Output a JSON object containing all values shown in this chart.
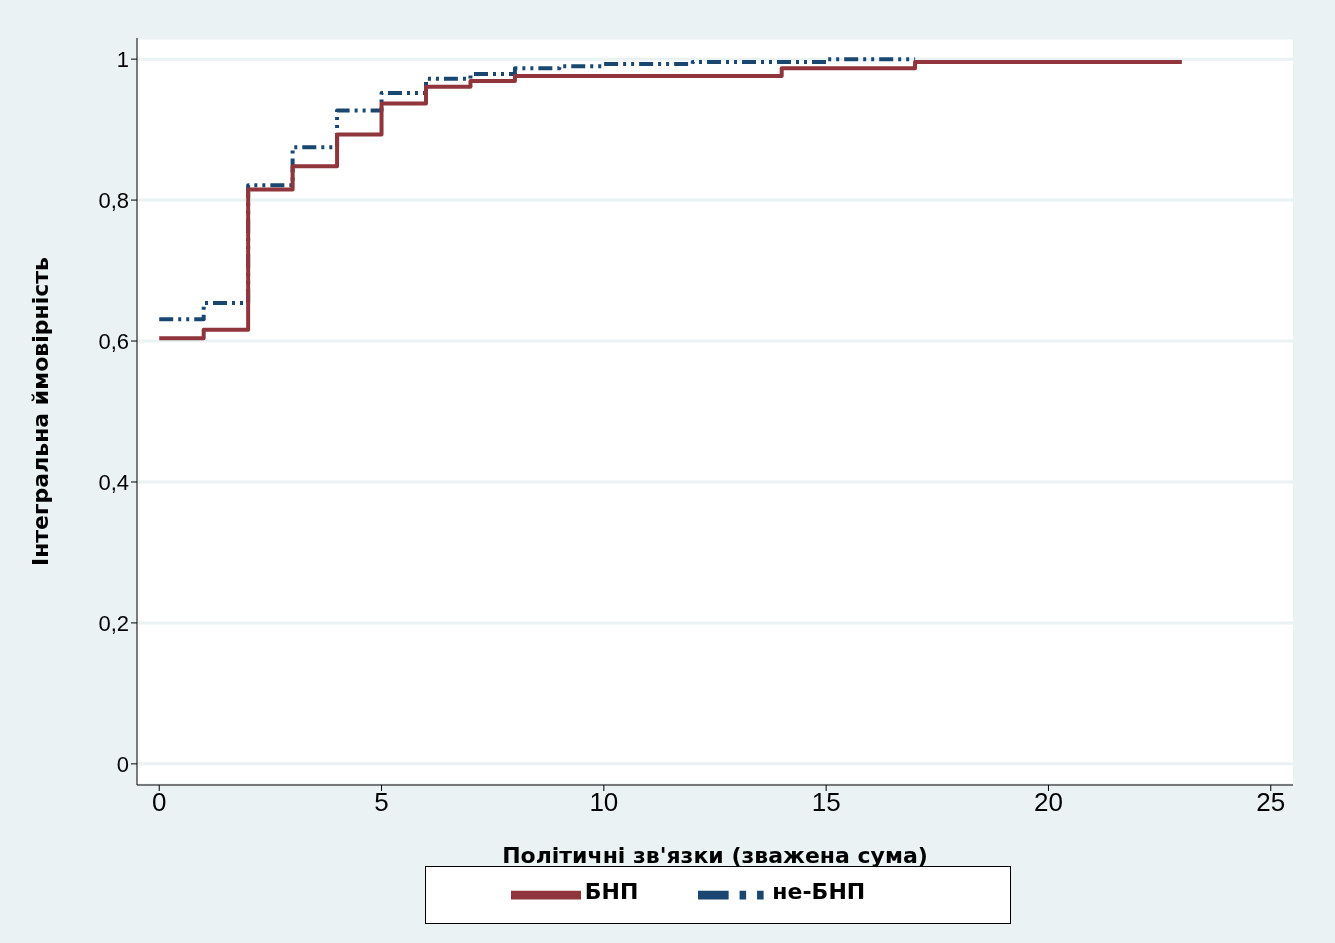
{
  "chart_data": {
    "type": "step",
    "xlabel": "Політичні зв'язки (зважена сума)",
    "ylabel": "Інтегральна ймовірність",
    "xlim": [
      -0.5,
      25.5
    ],
    "xticks": [
      0,
      5,
      10,
      15,
      20,
      25
    ],
    "ylim": [
      -0.03,
      1.03
    ],
    "yticks": [
      {
        "value": 0,
        "label": "0"
      },
      {
        "value": 0.2,
        "label": "0,2"
      },
      {
        "value": 0.4,
        "label": "0,4"
      },
      {
        "value": 0.6,
        "label": "0,6"
      },
      {
        "value": 0.8,
        "label": "0,8"
      },
      {
        "value": 1,
        "label": "1"
      }
    ],
    "grid": "y",
    "legend": "bottom",
    "series": [
      {
        "name": "не-БНП",
        "color": "#1a476f",
        "line_style": "dashdot",
        "x": [
          0,
          1,
          2,
          3,
          4,
          5,
          6,
          7,
          8,
          9,
          10,
          12,
          15,
          17
        ],
        "values": [
          0.631,
          0.654,
          0.821,
          0.875,
          0.927,
          0.952,
          0.972,
          0.979,
          0.987,
          0.99,
          0.993,
          0.996,
          1,
          1
        ]
      },
      {
        "name": "БНП",
        "color": "#90353b",
        "line_style": "solid",
        "x": [
          0,
          1,
          2,
          3,
          4,
          5,
          6,
          7,
          8,
          14,
          17,
          23
        ],
        "values": [
          0.604,
          0.616,
          0.815,
          0.848,
          0.893,
          0.937,
          0.961,
          0.969,
          0.976,
          0.987,
          0.996,
          0.996
        ]
      }
    ]
  }
}
